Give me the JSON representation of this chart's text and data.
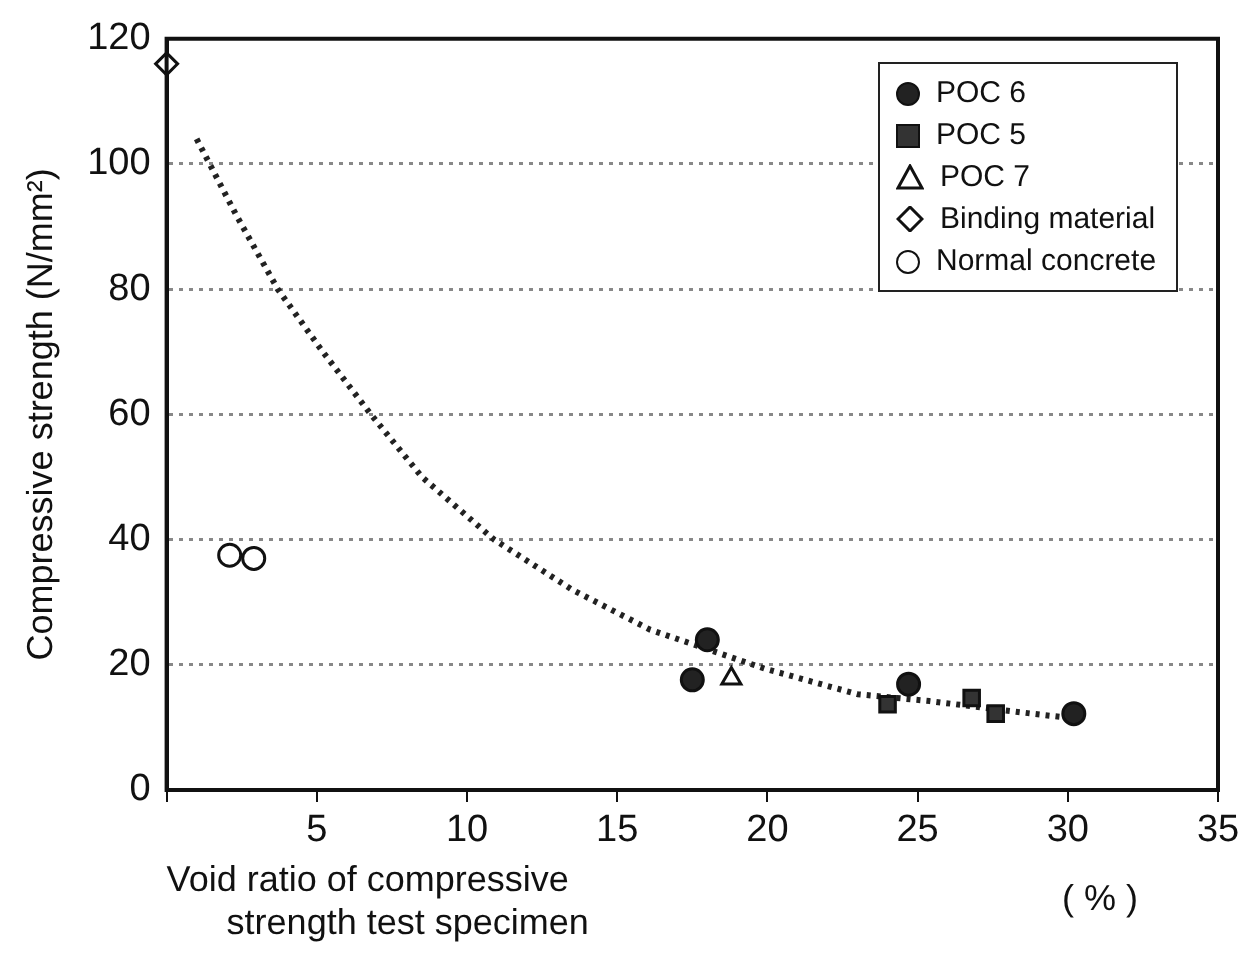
{
  "chart_data": {
    "type": "scatter",
    "xlabel": "Void ratio of compressive strength test specimen",
    "ylabel": "Compressive strength (N/mm²)",
    "annotations": [
      "( % )"
    ],
    "xlim": [
      0,
      35
    ],
    "xticks": [
      {
        "value": 0,
        "label": null
      },
      5,
      10,
      15,
      20,
      25,
      30,
      35
    ],
    "ylim": [
      0,
      120
    ],
    "yticks": [
      0,
      20,
      40,
      60,
      80,
      100,
      120
    ],
    "grid": "y",
    "legend": "top right",
    "series": [
      {
        "name": "POC 6",
        "color": "#222222",
        "marker": "circle",
        "x": [
          18.0,
          17.5,
          24.7,
          30.2
        ],
        "values": [
          24,
          17.6,
          16.9,
          12.2
        ]
      },
      {
        "name": "POC 5",
        "color": "#333333",
        "marker": "square",
        "x": [
          24.0,
          26.8,
          27.6
        ],
        "values": [
          13.7,
          14.7,
          12.2
        ]
      },
      {
        "name": "POC 7",
        "color": "#ffffff",
        "marker": "triangle",
        "x": [
          18.8
        ],
        "values": [
          17.8
        ]
      },
      {
        "name": "Binding material",
        "color": "#ffffff",
        "marker": "diamond",
        "x": [
          0
        ],
        "values": [
          116
        ]
      },
      {
        "name": "Normal concrete",
        "color": "#ffffff",
        "marker": "circle",
        "x": [
          2.1,
          2.9
        ],
        "values": [
          37.5,
          37
        ]
      },
      {
        "type": "line",
        "color": "#222222",
        "marker": "none",
        "line_style": "dotted",
        "x": [
          1.0,
          2.3,
          3.7,
          5.2,
          6.8,
          8.5,
          10.9,
          13.5,
          16.1,
          19.9,
          23.0,
          25.4,
          28.8,
          29.9
        ],
        "values": [
          104,
          92,
          80,
          70,
          60,
          50,
          40,
          32,
          25.6,
          19.4,
          15.3,
          14.2,
          12.2,
          11.6
        ]
      }
    ]
  }
}
